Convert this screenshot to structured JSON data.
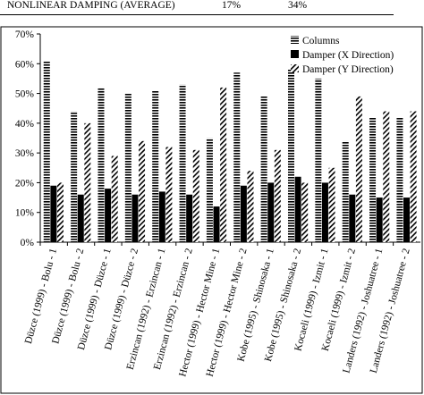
{
  "header": {
    "label": "NONLINEAR DAMPING (AVERAGE)",
    "value_1": "17%",
    "value_2": "34%"
  },
  "chart_data": {
    "type": "bar",
    "title": "",
    "xlabel": "",
    "ylabel": "",
    "ylim": [
      0,
      70
    ],
    "yticks": [
      "0%",
      "10%",
      "20%",
      "30%",
      "40%",
      "50%",
      "60%",
      "70%"
    ],
    "grid": false,
    "legend_position": "top-right",
    "categories": [
      "Düzce (1999) - Bolu - 1",
      "Düzce (1999) - Bolu - 2",
      "Düzce (1999) - Düzce - 1",
      "Düzce (1999) - Düzce - 2",
      "Erzincan (1992) - Erzincan - 1",
      "Erzincan (1992) - Erzincan - 2",
      "Hector (1999) - Hector Mine - 1",
      "Hector (1999) - Hector Mine - 2",
      "Kobe (1995) - Shinosaka - 1",
      "Kobe (1995) - Shinosaka - 2",
      "Kocaeli (1999) - Izmit - 1",
      "Kocaeli (1999) - Izmit - 2",
      "Landers (1992) - Joshuatree - 1",
      "Landers (1992) - Joshuatree - 2"
    ],
    "series": [
      {
        "name": "Columns",
        "pattern": "horizontal-stripes",
        "values": [
          61,
          44,
          52,
          50,
          51,
          53,
          35,
          57,
          49,
          58,
          55,
          34,
          42,
          42
        ]
      },
      {
        "name": "Damper (X Direction)",
        "pattern": "solid",
        "values": [
          19,
          16,
          18,
          16,
          17,
          16,
          12,
          19,
          20,
          22,
          20,
          16,
          15,
          15
        ]
      },
      {
        "name": "Damper (Y Direction)",
        "pattern": "diagonal-stripes",
        "values": [
          20,
          40,
          29,
          34,
          32,
          31,
          52,
          24,
          31,
          20,
          25,
          49,
          44,
          44
        ]
      }
    ],
    "colors": {
      "ink": "#000000",
      "background": "#ffffff"
    }
  }
}
